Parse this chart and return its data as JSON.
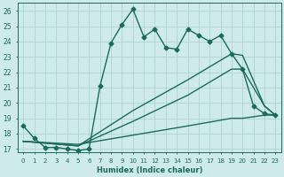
{
  "xlabel": "Humidex (Indice chaleur)",
  "background_color": "#ceeaea",
  "grid_color": "#aed4d4",
  "line_color": "#1a6b5a",
  "ylim": [
    16.8,
    26.5
  ],
  "xlim": [
    -0.5,
    23.5
  ],
  "yticks": [
    17,
    18,
    19,
    20,
    21,
    22,
    23,
    24,
    25,
    26
  ],
  "xticks": [
    0,
    1,
    2,
    3,
    4,
    5,
    6,
    7,
    8,
    9,
    10,
    11,
    12,
    13,
    14,
    15,
    16,
    17,
    18,
    19,
    20,
    21,
    22,
    23
  ],
  "lines": [
    {
      "x": [
        0,
        1,
        2,
        3,
        4,
        5,
        6,
        7,
        8,
        9,
        10,
        11,
        12,
        13,
        14,
        15,
        16,
        17,
        18,
        19,
        20,
        21,
        22,
        23
      ],
      "y": [
        18.5,
        17.7,
        17.1,
        17.1,
        17.0,
        16.9,
        17.0,
        21.1,
        23.9,
        25.1,
        26.1,
        24.3,
        24.8,
        23.6,
        23.5,
        24.8,
        24.4,
        24.0,
        24.4,
        23.2,
        22.2,
        19.8,
        19.3,
        19.2
      ],
      "marker": "D",
      "markersize": 2.5,
      "linewidth": 1.0
    },
    {
      "x": [
        0,
        5,
        10,
        15,
        19,
        20,
        22,
        23
      ],
      "y": [
        17.5,
        17.2,
        19.5,
        21.5,
        23.2,
        23.1,
        19.8,
        19.2
      ],
      "marker": null,
      "markersize": 0,
      "linewidth": 1.0
    },
    {
      "x": [
        0,
        5,
        10,
        15,
        19,
        20,
        22,
        23
      ],
      "y": [
        17.5,
        17.2,
        18.8,
        20.5,
        22.2,
        22.2,
        19.8,
        19.2
      ],
      "marker": null,
      "markersize": 0,
      "linewidth": 1.0
    },
    {
      "x": [
        0,
        5,
        10,
        15,
        19,
        20,
        22,
        23
      ],
      "y": [
        17.5,
        17.3,
        17.9,
        18.5,
        19.0,
        19.0,
        19.2,
        19.2
      ],
      "marker": null,
      "markersize": 0,
      "linewidth": 1.0
    }
  ]
}
